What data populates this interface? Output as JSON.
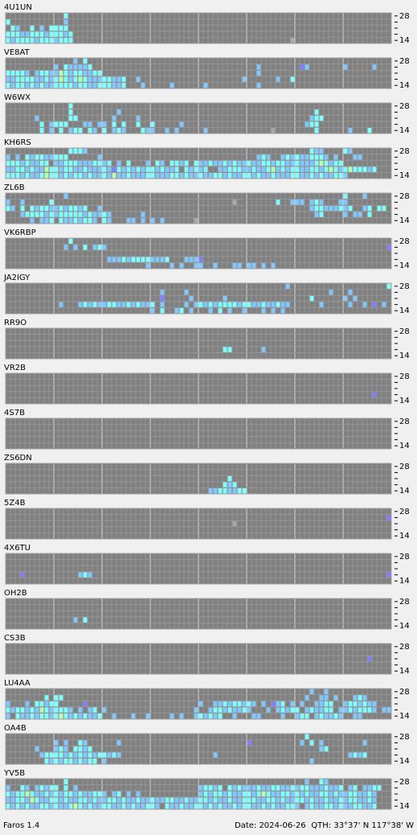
{
  "band_labels": [
    "28",
    "14"
  ],
  "panels": [
    {
      "station": "4U1UN",
      "runs": [
        [
          0,
          12,
          "c"
        ],
        [
          1,
          0,
          "c"
        ],
        [
          1,
          12,
          "b"
        ],
        [
          2,
          1,
          "cb..c.b.cccc"
        ],
        [
          3,
          0,
          "cccbbcccbcccbc"
        ],
        [
          4,
          0,
          "cbccccbcccbccc"
        ],
        [
          4,
          59,
          "x"
        ]
      ]
    },
    {
      "station": "VE8AT",
      "runs": [
        [
          0,
          14,
          "b.c"
        ],
        [
          1,
          10,
          "b.cbbbbc"
        ],
        [
          1,
          50,
          "..b........pb"
        ],
        [
          1,
          70,
          "b.....b"
        ],
        [
          2,
          0,
          "ccccb.bccbbgcbccbbcc"
        ],
        [
          2,
          52,
          "b"
        ],
        [
          3,
          0,
          "bbccccbbcbcgcbcgcbbbccbbc..b"
        ],
        [
          3,
          48,
          ".b......b..c"
        ],
        [
          4,
          0,
          "cbccbcbcbbccccbccbbcccbbc...b.....b"
        ],
        [
          4,
          41,
          "b"
        ],
        [
          4,
          52,
          "b"
        ]
      ]
    },
    {
      "station": "W6WX",
      "runs": [
        [
          0,
          13,
          "c"
        ],
        [
          1,
          13,
          "c.........b"
        ],
        [
          1,
          64,
          "c"
        ],
        [
          2,
          6,
          "b......cc.......b....b"
        ],
        [
          2,
          63,
          "bcc"
        ],
        [
          3,
          7,
          "c.bccc...bb.bb.c.c..c..c.....b"
        ],
        [
          3,
          62,
          "bcc"
        ],
        [
          4,
          7,
          "c.b.c.bcc.cb.c.bcb...cbb..b.b.....b"
        ],
        [
          4,
          55,
          "x........c......b...c"
        ]
      ]
    },
    {
      "station": "KH6RS",
      "runs": [
        [
          0,
          13,
          "cccb"
        ],
        [
          0,
          63,
          "cbb....cb"
        ],
        [
          1,
          0,
          "b.b.cbccbbccc......b"
        ],
        [
          1,
          52,
          "bcb..bcbcbbcccb.b...bb"
        ],
        [
          2,
          0,
          "cccbcbbcc.bbcccbbbccbc.b.c...b.cb.ccbc.cbbcbbcbcbbcbbccbccbbcbbbcgcbcc"
        ],
        [
          3,
          0,
          "bbccbcbbgccbccbbcbbbcbpcbcbcbccbcbbc.cbcbc..bbcccbbcbbcgbcbccbbccbcgcbcgcccbc"
        ],
        [
          4,
          0,
          "cccbcbbcgccbcbccbcbbcbgbbcbbbccbbbccbcbbcbbccbcbbccbcbbcbbbccbbcbcbbccb"
        ]
      ]
    },
    {
      "station": "ZL6B",
      "runs": [
        [
          0,
          12,
          "b"
        ],
        [
          0,
          70,
          "c...b"
        ],
        [
          1,
          0,
          "b..b.....c"
        ],
        [
          1,
          47,
          "x........c..bbb.bcb...bb"
        ],
        [
          2,
          0,
          "cb.c.cbccbbcbccbc..b"
        ],
        [
          2,
          63,
          "bccbbbcbc..bc.cc"
        ],
        [
          3,
          3,
          "bccccbcbcccccbcbbcb......b"
        ],
        [
          3,
          64,
          "bc....b.bb.c"
        ],
        [
          4,
          5,
          "b.bbc.cbbcbccb.cb...bb.b.b.b......x"
        ]
      ]
    },
    {
      "station": "VK6RBP",
      "runs": [
        [
          0,
          13,
          "c"
        ],
        [
          1,
          12,
          "b.b.c.bcb"
        ],
        [
          1,
          79,
          "p"
        ],
        [
          3,
          21,
          "bbbcbccccbbbc...bbbp"
        ],
        [
          4,
          29,
          "b....b.b..bb..b...bb.bb.b.b"
        ]
      ]
    },
    {
      "station": "JA2IGY",
      "runs": [
        [
          0,
          58,
          "b"
        ],
        [
          0,
          79,
          "c"
        ],
        [
          1,
          32,
          "b....b"
        ],
        [
          1,
          67,
          "b...b"
        ],
        [
          2,
          32,
          "p.....b......b"
        ],
        [
          2,
          63,
          "c......b.b"
        ],
        [
          3,
          11,
          "b...bcbcbbccbbcbcbbc.b....b.bcbcbccccbccbbcbbcbb......b.....b..b.p.b"
        ],
        [
          4,
          30,
          "b.c..bc.b...b.c.b..b...b.b.b"
        ]
      ]
    },
    {
      "station": "RR9O",
      "runs": [
        [
          3,
          45,
          "cc"
        ],
        [
          3,
          53,
          "b"
        ]
      ]
    },
    {
      "station": "VR2B",
      "runs": [
        [
          3,
          76,
          "p"
        ]
      ]
    },
    {
      "station": "4S7B",
      "runs": []
    },
    {
      "station": "ZS6DN",
      "runs": [
        [
          2,
          46,
          "c"
        ],
        [
          3,
          45,
          "cbc"
        ],
        [
          4,
          42,
          "bbccbbcc"
        ]
      ]
    },
    {
      "station": "5Z4B",
      "runs": [
        [
          1,
          79,
          "p"
        ],
        [
          2,
          47,
          "x"
        ]
      ]
    },
    {
      "station": "4X6TU",
      "runs": [
        [
          3,
          3,
          "p"
        ],
        [
          3,
          15,
          "bcb"
        ],
        [
          3,
          79,
          "p"
        ]
      ]
    },
    {
      "station": "OH2B",
      "runs": [
        [
          3,
          14,
          "b.c"
        ]
      ]
    },
    {
      "station": "CS3B",
      "runs": [
        [
          2,
          75,
          "p"
        ]
      ]
    },
    {
      "station": "LU4AA",
      "runs": [
        [
          0,
          63,
          "b..b"
        ],
        [
          1,
          8,
          "c.cc"
        ],
        [
          1,
          62,
          "b..bb.b...bcb"
        ],
        [
          2,
          0,
          "b...b.ccbcc.....p"
        ],
        [
          2,
          40,
          "b..bbcbccbcb.b.pbc.b.b..bbcc..bccbcbb"
        ],
        [
          3,
          0,
          "cbccbcbgcbcccb.b.bc.b"
        ],
        [
          3,
          39,
          "b..bccbcbbcb...b.bcbcc.bcbbcc.bbcbcccb.bb"
        ],
        [
          4,
          0,
          "b.cbbcbccbcgcbcbcbbc..b...b..b....b.b..bcbcbc..b...bb....b..bcc.bcbbcb..bb"
        ]
      ]
    },
    {
      "station": "OA4B",
      "runs": [
        [
          0,
          62,
          "c"
        ],
        [
          1,
          10,
          "b.b..cb......b"
        ],
        [
          1,
          50,
          "p..........b.c.b........b"
        ],
        [
          2,
          6,
          "b...bcb.ccbc"
        ],
        [
          2,
          65,
          "bc"
        ],
        [
          3,
          7,
          "bccccbcbcbcbccbcb"
        ],
        [
          3,
          43,
          "b"
        ],
        [
          3,
          71,
          "bcbc"
        ],
        [
          4,
          8,
          "cbcbccbcbcc.b"
        ],
        [
          4,
          63,
          "b"
        ]
      ]
    },
    {
      "station": "YV5B",
      "runs": [
        [
          0,
          12,
          "c"
        ],
        [
          0,
          62,
          "b..cb"
        ],
        [
          1,
          0,
          "b..cb.bcbcc.c.b"
        ],
        [
          1,
          40,
          "bccbc.cbcbbbcbbccbbcbccbbbcbbc.bc.bbcc"
        ],
        [
          2,
          0,
          "cbccgcbbcbcbccbcbbccb.bc.b.b"
        ],
        [
          2,
          40,
          "bcbccbcbbccbcgcbbccbcbcbbccbcbbccbbcb"
        ],
        [
          3,
          0,
          "bbccbgcbbccbcbbccbcbbccbcbbcbbcbbccbbcbbccbcbbcbbcccbbccbcbbccbcbbcbbcbccbbcb"
        ],
        [
          4,
          0,
          "cbcbcbbccbcbbcgcbcbbccbbcbcbbccb.cbbcbbccbcbcbbcbccbbcbcbbccb.bcbbccbcbbccbbc"
        ]
      ]
    }
  ],
  "footer": {
    "app": "Faros 1.4",
    "date": "Date: 2024-06-26",
    "qth": "QTH: 33°37' N  117°38' W"
  }
}
